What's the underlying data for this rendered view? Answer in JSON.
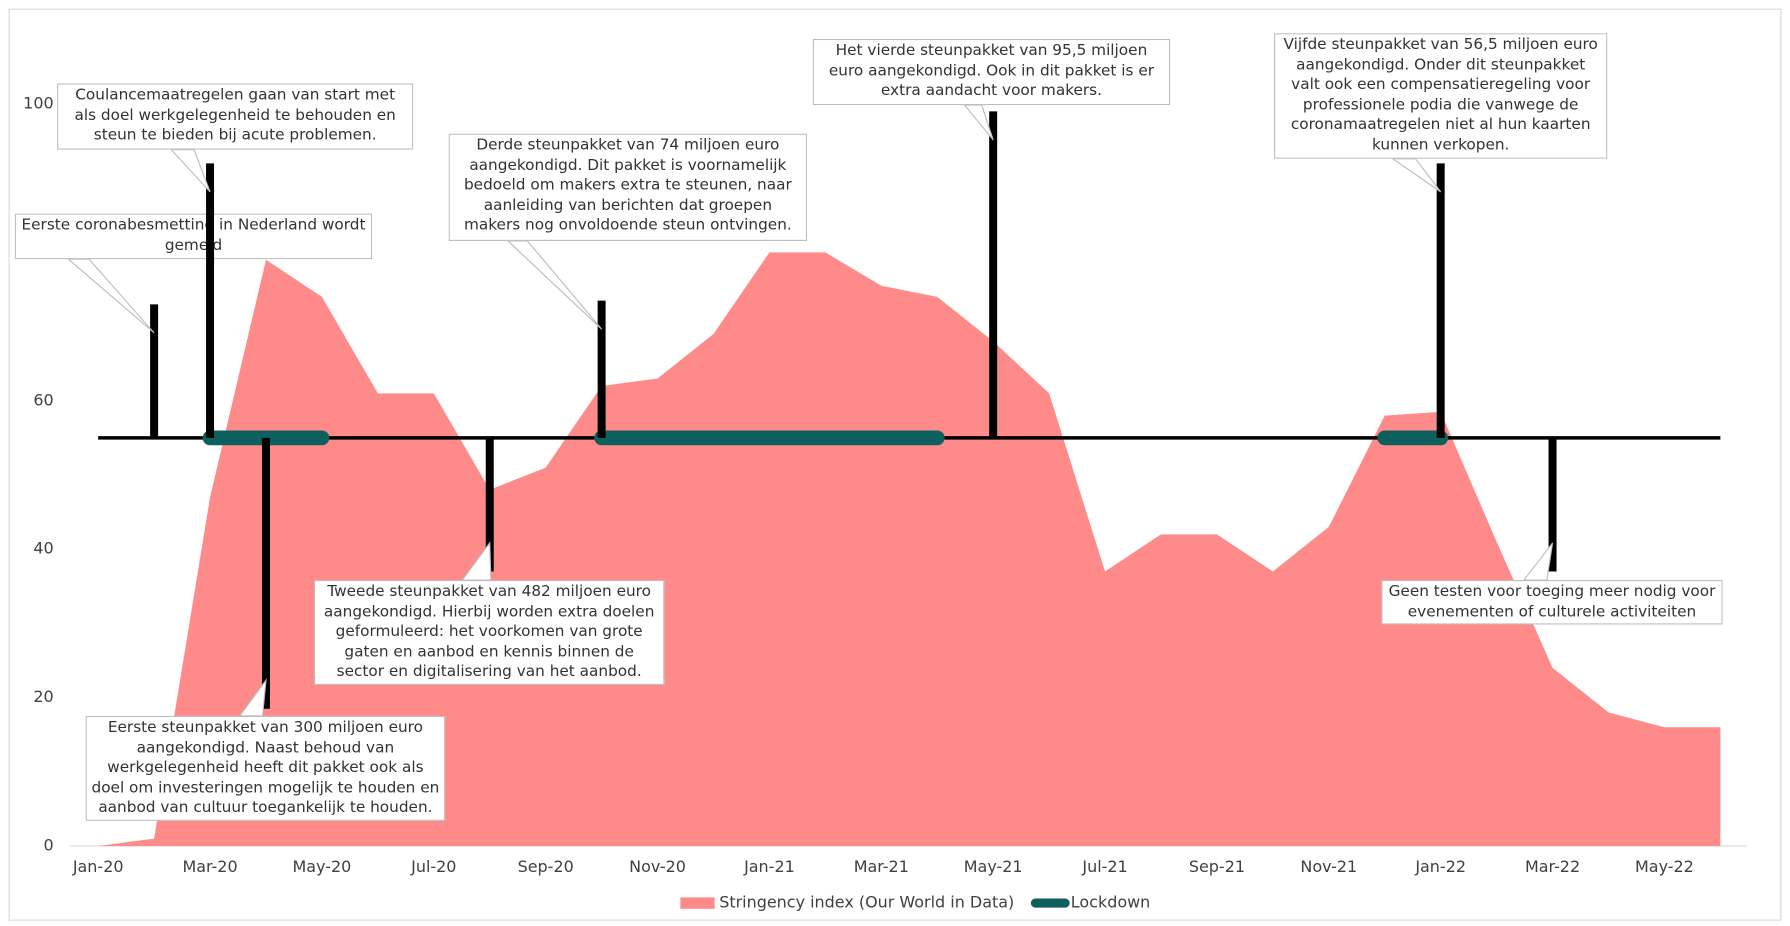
{
  "chart_data": {
    "type": "area",
    "x": [
      "2020-01",
      "2020-02",
      "2020-03",
      "2020-04",
      "2020-05",
      "2020-06",
      "2020-07",
      "2020-08",
      "2020-09",
      "2020-10",
      "2020-11",
      "2020-12",
      "2021-01",
      "2021-02",
      "2021-03",
      "2021-04",
      "2021-05",
      "2021-06",
      "2021-07",
      "2021-08",
      "2021-09",
      "2021-10",
      "2021-11",
      "2021-12",
      "2022-01",
      "2022-02",
      "2022-03",
      "2022-04",
      "2022-05",
      "2022-06"
    ],
    "xticks": [
      {
        "value": "2020-01",
        "label": "Jan-20"
      },
      {
        "value": "2020-03",
        "label": "Mar-20"
      },
      {
        "value": "2020-05",
        "label": "May-20"
      },
      {
        "value": "2020-07",
        "label": "Jul-20"
      },
      {
        "value": "2020-09",
        "label": "Sep-20"
      },
      {
        "value": "2020-11",
        "label": "Nov-20"
      },
      {
        "value": "2021-01",
        "label": "Jan-21"
      },
      {
        "value": "2021-03",
        "label": "Mar-21"
      },
      {
        "value": "2021-05",
        "label": "May-21"
      },
      {
        "value": "2021-07",
        "label": "Jul-21"
      },
      {
        "value": "2021-09",
        "label": "Sep-21"
      },
      {
        "value": "2021-11",
        "label": "Nov-21"
      },
      {
        "value": "2022-01",
        "label": "Jan-22"
      },
      {
        "value": "2022-03",
        "label": "Mar-22"
      },
      {
        "value": "2022-05",
        "label": "May-22"
      }
    ],
    "ylim": [
      0,
      100
    ],
    "yticks": [
      0,
      20,
      40,
      60,
      80,
      100
    ],
    "grid": false,
    "legend": "bottom",
    "series": [
      {
        "name": "Stringency index (Our World in Data)",
        "color": "#ff8a8a",
        "type": "area",
        "values": [
          0,
          1,
          47,
          79,
          74,
          61,
          61,
          48,
          51,
          62,
          63,
          69,
          80,
          80,
          75.5,
          74,
          68,
          61,
          37,
          42,
          42,
          37,
          43,
          58,
          58.5,
          41,
          24,
          18,
          16,
          16
        ]
      },
      {
        "name": "Lockdown",
        "color": "#0d605e",
        "type": "line",
        "values": [
          null,
          null,
          55,
          55,
          55,
          null,
          null,
          null,
          null,
          55,
          55,
          55,
          55,
          55,
          55,
          55,
          null,
          null,
          null,
          null,
          null,
          null,
          null,
          55,
          55,
          null,
          null,
          null,
          null,
          null
        ]
      }
    ],
    "annotations": [
      {
        "text": "Eerste coronabesmetting in Nederland wordt gemeld",
        "x": "2020-02",
        "range": [
          55,
          73
        ]
      },
      {
        "text": "Coulancemaatregelen gaan van start met als doel werkgelegenheid te behouden en steun te bieden bij acute problemen.",
        "x": "2020-03",
        "range": [
          55,
          92
        ]
      },
      {
        "text": "Eerste steunpakket van 300 miljoen euro aangekondigd. Naast behoud van werkgelegenheid heeft dit pakket ook als doel om investeringen mogelijk te houden en aanbod van cultuur toegankelijk te houden.",
        "x": "2020-04",
        "range": [
          55,
          18.5
        ]
      },
      {
        "text": "Tweede steunpakket van 482 miljoen euro aangekondigd. Hierbij worden extra doelen geformuleerd: het voorkomen van grote gaten en aanbod en kennis binnen de sector en digitalisering van het aanbod.",
        "x": "2020-08",
        "range": [
          55,
          37
        ]
      },
      {
        "text": "Derde steunpakket van 74 miljoen euro aangekondigd. Dit pakket is voornamelijk bedoeld om makers extra te steunen, naar aanleiding van berichten dat groepen makers nog onvoldoende steun ontvingen.",
        "x": "2020-10",
        "range": [
          55,
          73.5
        ]
      },
      {
        "text": "Het vierde steunpakket van 95,5 miljoen euro aangekondigd. Ook in dit pakket is er extra aandacht voor makers.",
        "x": "2021-05",
        "range": [
          55,
          99
        ]
      },
      {
        "text": "Vijfde steunpakket van 56,5 miljoen euro aangekondigd. Onder dit steunpakket valt ook een compensatieregeling voor professionele podia die vanwege de coronamaatregelen niet al hun kaarten kunnen verkopen.",
        "x": "2022-01",
        "range": [
          55,
          92
        ]
      },
      {
        "text": "Geen testen voor toeging meer nodig voor evenementen of culturele activiteiten",
        "x": "2022-03",
        "range": [
          55,
          37
        ]
      }
    ]
  }
}
